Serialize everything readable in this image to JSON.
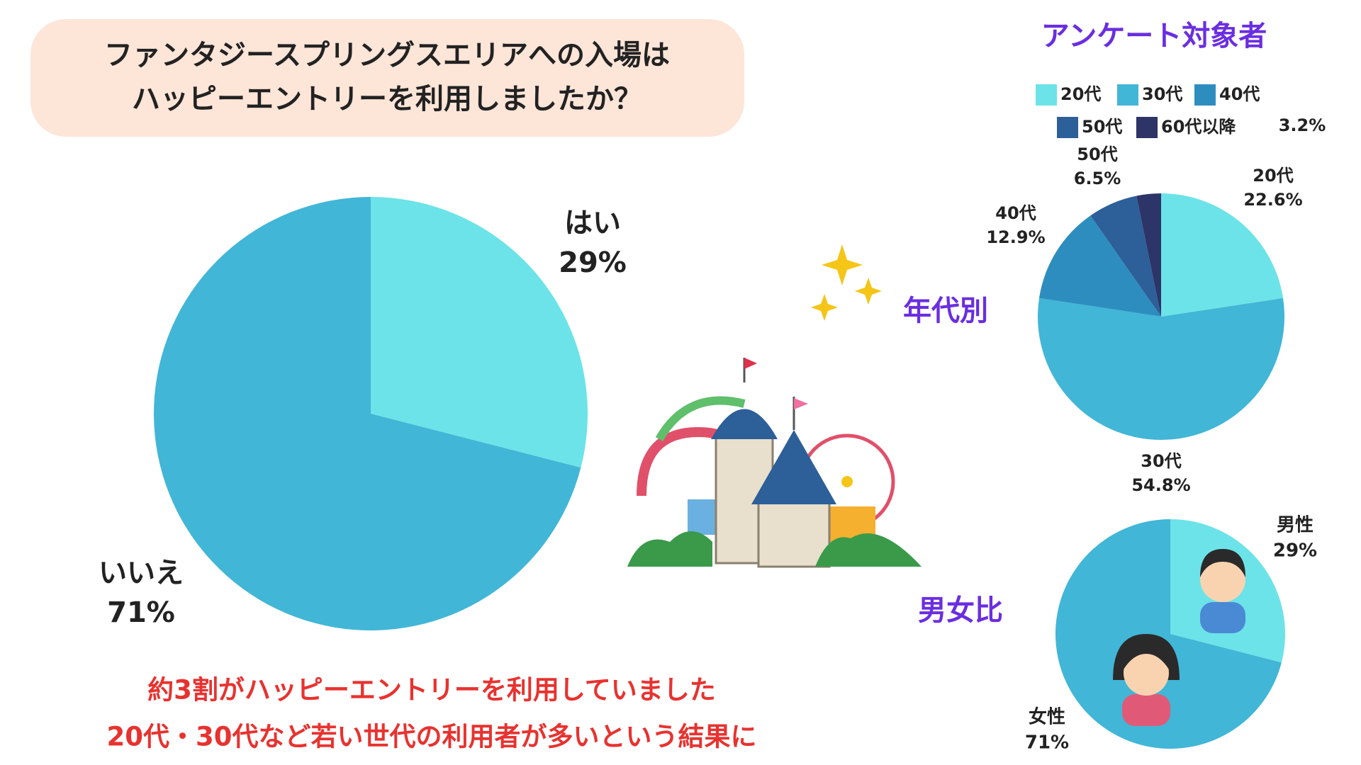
{
  "header": {
    "lines": [
      "ファンタジースプリングスエリアへの入場は",
      "ハッピーエントリーを利用しましたか？"
    ]
  },
  "conclusion": {
    "lines": [
      "約3割がハッピーエントリーを利用していました",
      "20代・30代など若い世代の利用者が多いという結果に"
    ]
  },
  "chart_data": [
    {
      "type": "pie",
      "categories": [
        "はい",
        "いいえ"
      ],
      "values": [
        29,
        71
      ],
      "value_labels": [
        "29%",
        "71%"
      ],
      "colors": [
        "#6ce3e8",
        "#41b6d6"
      ]
    },
    {
      "type": "pie",
      "title": "年代別",
      "legend_title": "アンケート対象者",
      "legend": true,
      "categories": [
        "20代",
        "30代",
        "40代",
        "50代",
        "60代以降"
      ],
      "values": [
        22.6,
        54.8,
        12.9,
        6.5,
        3.2
      ],
      "value_labels": [
        "22.6%",
        "54.8%",
        "12.9%",
        "6.5%",
        "3.2%"
      ],
      "colors": [
        "#6ce3e8",
        "#41b6d6",
        "#2e8dbf",
        "#2d5f98",
        "#2c3468"
      ]
    },
    {
      "type": "pie",
      "title": "男女比",
      "categories": [
        "男性",
        "女性"
      ],
      "values": [
        29,
        71
      ],
      "value_labels": [
        "29%",
        "71%"
      ],
      "colors": [
        "#6ce3e8",
        "#41b6d6"
      ]
    }
  ]
}
